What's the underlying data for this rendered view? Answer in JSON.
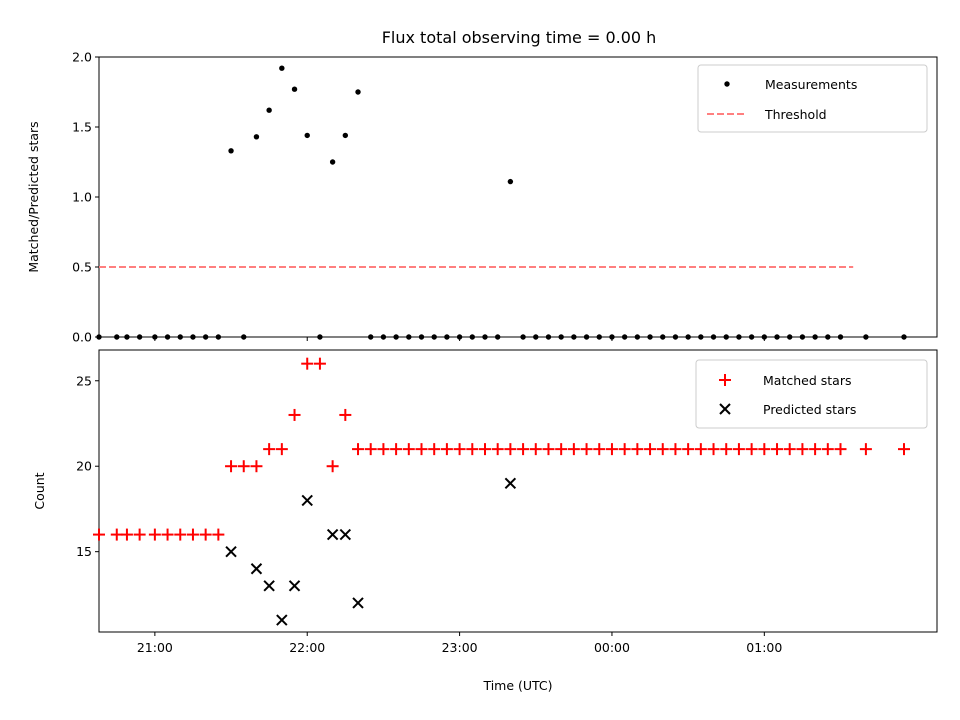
{
  "chart_data": [
    {
      "type": "scatter",
      "title": "Flux total observing time = 0.00 h",
      "xlabel": "",
      "ylabel": "Matched/Predicted stars",
      "ylim": [
        0,
        2.0
      ],
      "yticks": [
        "0.0",
        "0.5",
        "1.0",
        "1.5",
        "2.0"
      ],
      "legend_position": "top-right",
      "series": [
        {
          "name": "Measurements",
          "marker": "dot",
          "color": "#000000",
          "x": [
            "20:38",
            "20:45",
            "20:49",
            "20:54",
            "21:00",
            "21:05",
            "21:10",
            "21:15",
            "21:20",
            "21:25",
            "21:30",
            "21:35",
            "21:40",
            "21:45",
            "21:50",
            "21:55",
            "22:00",
            "22:05",
            "22:10",
            "22:15",
            "22:20",
            "22:25",
            "22:30",
            "22:35",
            "22:40",
            "22:45",
            "22:50",
            "22:55",
            "23:00",
            "23:05",
            "23:10",
            "23:15",
            "23:20",
            "23:25",
            "23:30",
            "23:35",
            "23:40",
            "23:45",
            "23:50",
            "23:55",
            "00:00",
            "00:05",
            "00:10",
            "00:15",
            "00:20",
            "00:25",
            "00:30",
            "00:35",
            "00:40",
            "00:45",
            "00:50",
            "00:55",
            "01:00",
            "01:05",
            "01:10",
            "01:15",
            "01:20",
            "01:25",
            "01:30",
            "01:40",
            "01:55"
          ],
          "y": [
            0,
            0,
            0,
            0,
            0,
            0,
            0,
            0,
            0,
            0,
            1.33,
            0,
            1.43,
            1.62,
            1.92,
            1.77,
            1.44,
            0,
            1.25,
            1.44,
            1.75,
            0,
            0,
            0,
            0,
            0,
            0,
            0,
            0,
            0,
            0,
            0,
            1.11,
            0,
            0,
            0,
            0,
            0,
            0,
            0,
            0,
            0,
            0,
            0,
            0,
            0,
            0,
            0,
            0,
            0,
            0,
            0,
            0,
            0,
            0,
            0,
            0,
            0,
            0,
            0,
            0
          ]
        },
        {
          "name": "Threshold",
          "line_style": "dashed",
          "color": "#ff7f7f",
          "x": [
            "20:38",
            "01:35"
          ],
          "y": [
            0.5,
            0.5
          ]
        }
      ]
    },
    {
      "type": "scatter",
      "title": "",
      "xlabel": "Time (UTC)",
      "ylabel": "Count",
      "ylim": [
        10.3,
        26.8
      ],
      "yticks": [
        "15",
        "20",
        "25"
      ],
      "xticks": [
        "21:00",
        "22:00",
        "23:00",
        "00:00",
        "01:00"
      ],
      "legend_position": "top-right",
      "series": [
        {
          "name": "Matched stars",
          "marker": "plus",
          "color": "#ff0000",
          "x": [
            "20:38",
            "20:45",
            "20:49",
            "20:54",
            "21:00",
            "21:05",
            "21:10",
            "21:15",
            "21:20",
            "21:25",
            "21:30",
            "21:35",
            "21:40",
            "21:45",
            "21:50",
            "21:55",
            "22:00",
            "22:05",
            "22:10",
            "22:15",
            "22:20",
            "22:25",
            "22:30",
            "22:35",
            "22:40",
            "22:45",
            "22:50",
            "22:55",
            "23:00",
            "23:05",
            "23:10",
            "23:15",
            "23:20",
            "23:25",
            "23:30",
            "23:35",
            "23:40",
            "23:45",
            "23:50",
            "23:55",
            "00:00",
            "00:05",
            "00:10",
            "00:15",
            "00:20",
            "00:25",
            "00:30",
            "00:35",
            "00:40",
            "00:45",
            "00:50",
            "00:55",
            "01:00",
            "01:05",
            "01:10",
            "01:15",
            "01:20",
            "01:25",
            "01:30",
            "01:40",
            "01:55"
          ],
          "y": [
            16,
            16,
            16,
            16,
            16,
            16,
            16,
            16,
            16,
            16,
            20,
            20,
            20,
            21,
            21,
            23,
            26,
            26,
            20,
            23,
            21,
            21,
            21,
            21,
            21,
            21,
            21,
            21,
            21,
            21,
            21,
            21,
            21,
            21,
            21,
            21,
            21,
            21,
            21,
            21,
            21,
            21,
            21,
            21,
            21,
            21,
            21,
            21,
            21,
            21,
            21,
            21,
            21,
            21,
            21,
            21,
            21,
            21,
            21,
            21,
            21
          ]
        },
        {
          "name": "Predicted stars",
          "marker": "x",
          "color": "#000000",
          "x": [
            "21:30",
            "21:40",
            "21:45",
            "21:50",
            "21:55",
            "22:00",
            "22:10",
            "22:15",
            "22:20",
            "23:20"
          ],
          "y": [
            15,
            14,
            13,
            11,
            13,
            18,
            16,
            16,
            12,
            19
          ]
        }
      ]
    }
  ]
}
